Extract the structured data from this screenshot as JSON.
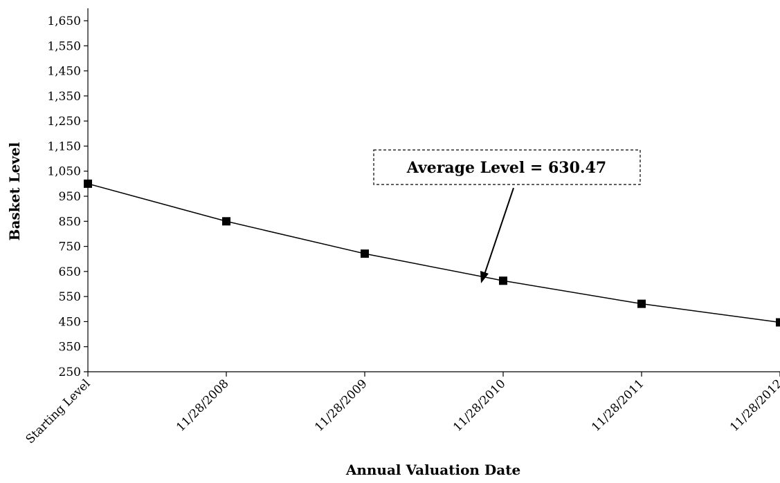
{
  "chart_data": {
    "type": "line",
    "title": "",
    "xlabel": "Annual Valuation Date",
    "ylabel": "Basket Level",
    "categories": [
      "Starting Level",
      "11/28/2008",
      "11/28/2009",
      "11/28/2010",
      "11/28/2011",
      "11/28/2012"
    ],
    "series": [
      {
        "values": [
          1000,
          850,
          721,
          613,
          521,
          447
        ]
      }
    ],
    "ylim": [
      250,
      1700
    ],
    "yticks": [
      250,
      350,
      450,
      550,
      650,
      750,
      850,
      950,
      1050,
      1150,
      1250,
      1350,
      1450,
      1550,
      1650
    ],
    "ytick_labels": [
      "250",
      "350",
      "450",
      "550",
      "650",
      "750",
      "850",
      "950",
      "1,050",
      "1,150",
      "1,250",
      "1,350",
      "1,450",
      "1,550",
      "1,650"
    ],
    "grid": false,
    "legend": "none",
    "marker": "square",
    "line_color": "#000000",
    "annotation": {
      "text": "Average Level = 630.47",
      "value": 630.47,
      "box_style": "dashed"
    }
  }
}
